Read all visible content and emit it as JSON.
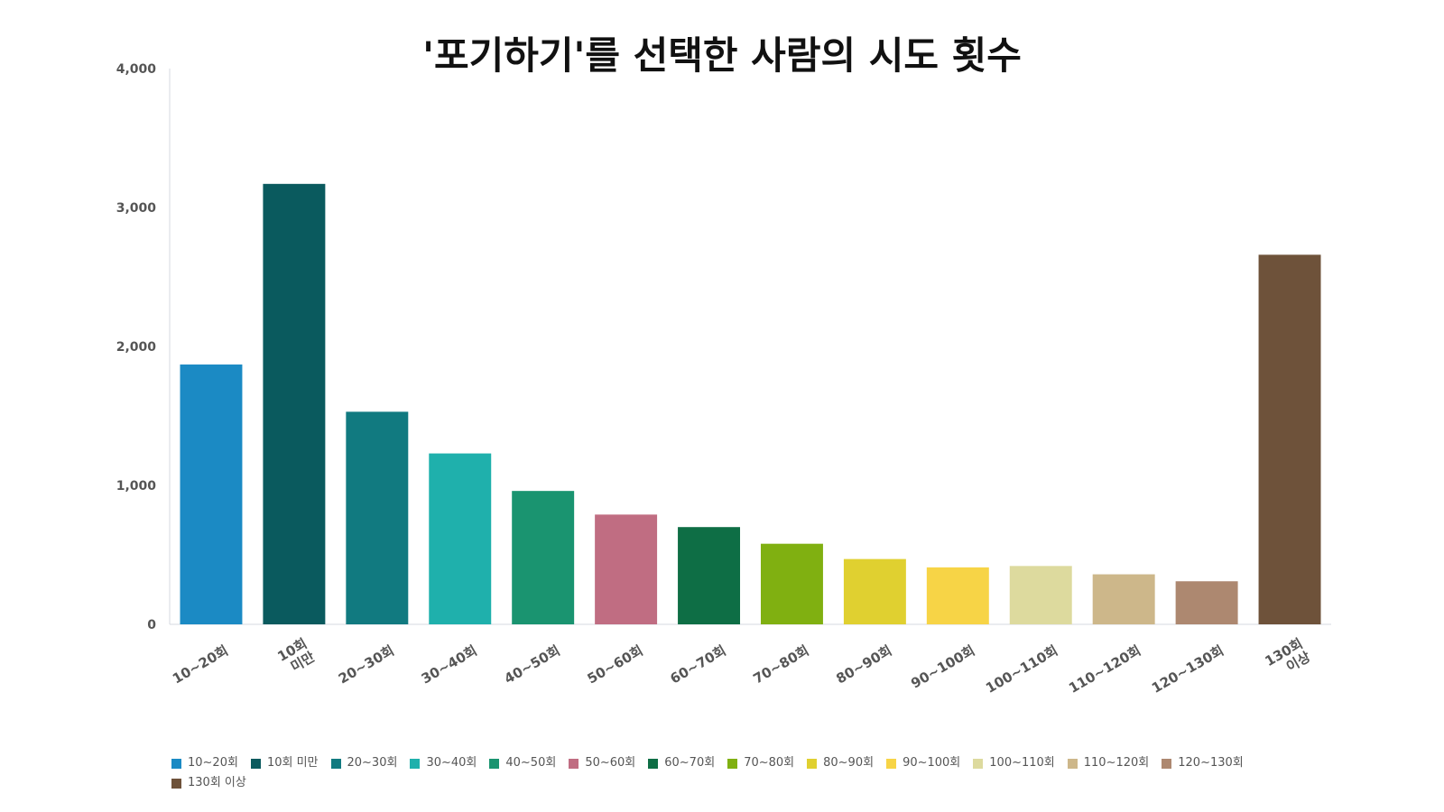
{
  "chart_data": {
    "type": "bar",
    "title": "'포기하기'를 선택한 사람의 시도 횟수",
    "xlabel": "",
    "ylabel": "",
    "ylim": [
      0,
      4000
    ],
    "yticks": [
      "0",
      "1,000",
      "2,000",
      "3,000",
      "4,000"
    ],
    "ytick_values": [
      0,
      1000,
      2000,
      3000,
      4000
    ],
    "grid": false,
    "legend_position": "bottom",
    "categories": [
      "10~20회",
      "10회 미만",
      "20~30회",
      "30~40회",
      "40~50회",
      "50~60회",
      "60~70회",
      "70~80회",
      "80~90회",
      "90~100회",
      "100~110회",
      "110~120회",
      "120~130회",
      "130회 이상"
    ],
    "tick_labels": [
      [
        "10~20회"
      ],
      [
        "10회",
        "미만"
      ],
      [
        "20~30회"
      ],
      [
        "30~40회"
      ],
      [
        "40~50회"
      ],
      [
        "50~60회"
      ],
      [
        "60~70회"
      ],
      [
        "70~80회"
      ],
      [
        "80~90회"
      ],
      [
        "90~100회"
      ],
      [
        "100~110회"
      ],
      [
        "110~120회"
      ],
      [
        "120~130회"
      ],
      [
        "130회",
        "이상"
      ]
    ],
    "values": [
      1870,
      3170,
      1530,
      1230,
      960,
      790,
      700,
      580,
      470,
      410,
      420,
      360,
      310,
      2660
    ],
    "colors": [
      "#1b8ac4",
      "#0a5a5e",
      "#117a80",
      "#1fb0ac",
      "#1a9470",
      "#c06d82",
      "#0e6e45",
      "#80b011",
      "#e0d030",
      "#f7d446",
      "#ddda9e",
      "#cdb78a",
      "#ad8870",
      "#6e523a"
    ]
  }
}
